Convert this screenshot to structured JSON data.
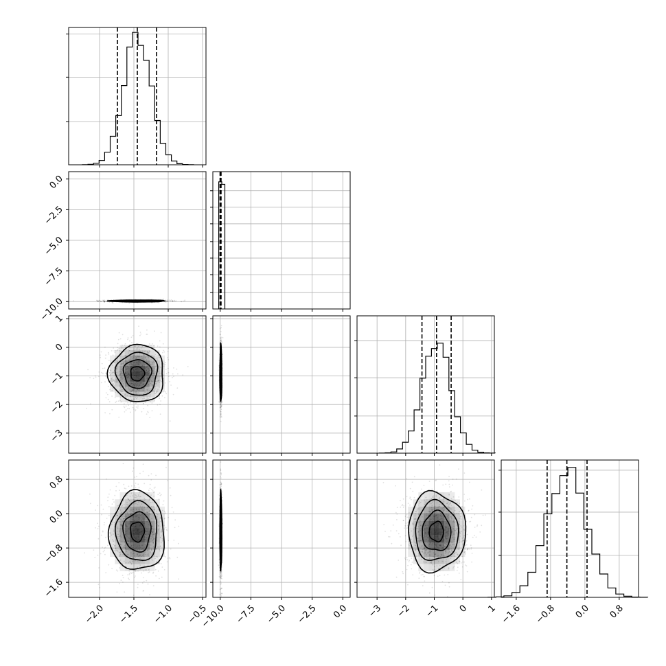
{
  "chart_data": {
    "type": "corner",
    "grid": true,
    "parameters": [
      {
        "range": [
          -2.45,
          -0.45
        ],
        "ticks": [
          -2.0,
          -1.5,
          -1.0,
          -0.5
        ],
        "tick_labels": [
          "−2.0",
          "−1.5",
          "−1.0",
          "−0.5"
        ],
        "mean": -1.45,
        "sd": 0.2,
        "quantiles": [
          -1.74,
          -1.45,
          -1.17
        ],
        "hist_ymax": 1.05,
        "hist_yticks": [
          0.33,
          0.67,
          1.0
        ]
      },
      {
        "range": [
          -10.6,
          0.6
        ],
        "ticks": [
          -10.0,
          -7.5,
          -5.0,
          -2.5,
          0.0
        ],
        "tick_labels": [
          "−10.0",
          "−7.5",
          "−5.0",
          "−2.5",
          "0.0"
        ],
        "mean": -9.95,
        "sd": 0.04,
        "quantiles": [
          -10.01,
          -9.97,
          -9.93
        ],
        "hist_ymax": 1.08,
        "hist_yticks": [
          0.13,
          0.27,
          0.4,
          0.53,
          0.67,
          0.8,
          0.93
        ]
      },
      {
        "range": [
          -3.7,
          1.1
        ],
        "ticks": [
          -3,
          -2,
          -1,
          0,
          1
        ],
        "tick_labels": [
          "−3",
          "−2",
          "−1",
          "0",
          "1"
        ],
        "mean": -0.92,
        "sd": 0.5,
        "quantiles": [
          -1.43,
          -0.92,
          -0.41
        ],
        "hist_ymax": 1.22,
        "hist_yticks": [
          0.33,
          0.67,
          1.0
        ]
      },
      {
        "range": [
          -1.95,
          1.25
        ],
        "ticks": [
          -1.6,
          -0.8,
          0.0,
          0.8
        ],
        "tick_labels": [
          "−1.6",
          "−0.8",
          "0.0",
          "0.8"
        ],
        "mean": -0.42,
        "sd": 0.46,
        "quantiles": [
          -0.88,
          -0.42,
          0.05
        ],
        "hist_ymax": 1.08,
        "hist_yticks": [
          0.33,
          0.67,
          1.0
        ]
      }
    ]
  }
}
